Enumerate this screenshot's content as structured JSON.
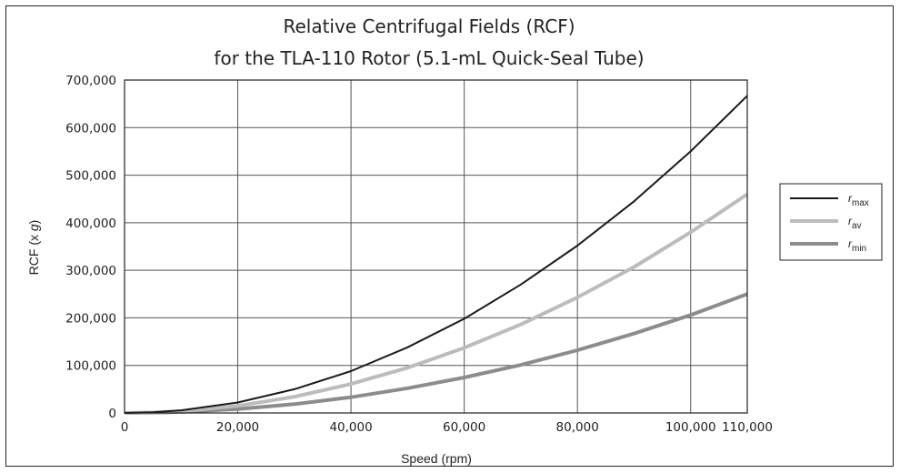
{
  "chart_data": {
    "type": "line",
    "title": "Relative Centrifugal Fields (RCF)",
    "subtitle": "for the TLA-110 Rotor (5.1-mL Quick-Seal Tube)",
    "xlabel": "Speed (rpm)",
    "ylabel_prefix": "RCF (x ",
    "ylabel_italic": "g",
    "ylabel_suffix": ")",
    "xlim": [
      0,
      110000
    ],
    "ylim": [
      0,
      700000
    ],
    "x_ticks": [
      0,
      20000,
      40000,
      60000,
      80000,
      100000,
      110000
    ],
    "x_tick_labels": [
      "0",
      "20,000",
      "40,000",
      "60,000",
      "80,000",
      "100,000",
      "110,000"
    ],
    "y_ticks": [
      0,
      100000,
      200000,
      300000,
      400000,
      500000,
      600000,
      700000
    ],
    "y_tick_labels": [
      "0",
      "100,000",
      "200,000",
      "300,000",
      "400,000",
      "500,000",
      "600,000",
      "700,000"
    ],
    "grid": true,
    "legend_position": "right",
    "series": [
      {
        "name_italic": "r",
        "name_sub": "max",
        "color": "#1a1a1a",
        "x": [
          0,
          5000,
          10000,
          20000,
          30000,
          40000,
          50000,
          60000,
          70000,
          80000,
          90000,
          100000,
          110000
        ],
        "y": [
          0,
          1400,
          5500,
          22000,
          50000,
          88000,
          138000,
          198000,
          270000,
          352000,
          445000,
          550000,
          667000
        ]
      },
      {
        "name_italic": "r",
        "name_sub": "av",
        "color": "#bcbcbc",
        "x": [
          0,
          5000,
          10000,
          20000,
          30000,
          40000,
          50000,
          60000,
          70000,
          80000,
          90000,
          100000,
          110000
        ],
        "y": [
          0,
          950,
          3800,
          15000,
          34000,
          61000,
          95000,
          137000,
          186000,
          243000,
          307000,
          380000,
          460000
        ]
      },
      {
        "name_italic": "r",
        "name_sub": "min",
        "color": "#8c8c8c",
        "x": [
          0,
          5000,
          10000,
          20000,
          30000,
          40000,
          50000,
          60000,
          70000,
          80000,
          90000,
          100000,
          110000
        ],
        "y": [
          0,
          520,
          2100,
          8300,
          18600,
          33000,
          52000,
          74500,
          101000,
          132000,
          167000,
          206000,
          250000
        ]
      }
    ]
  }
}
